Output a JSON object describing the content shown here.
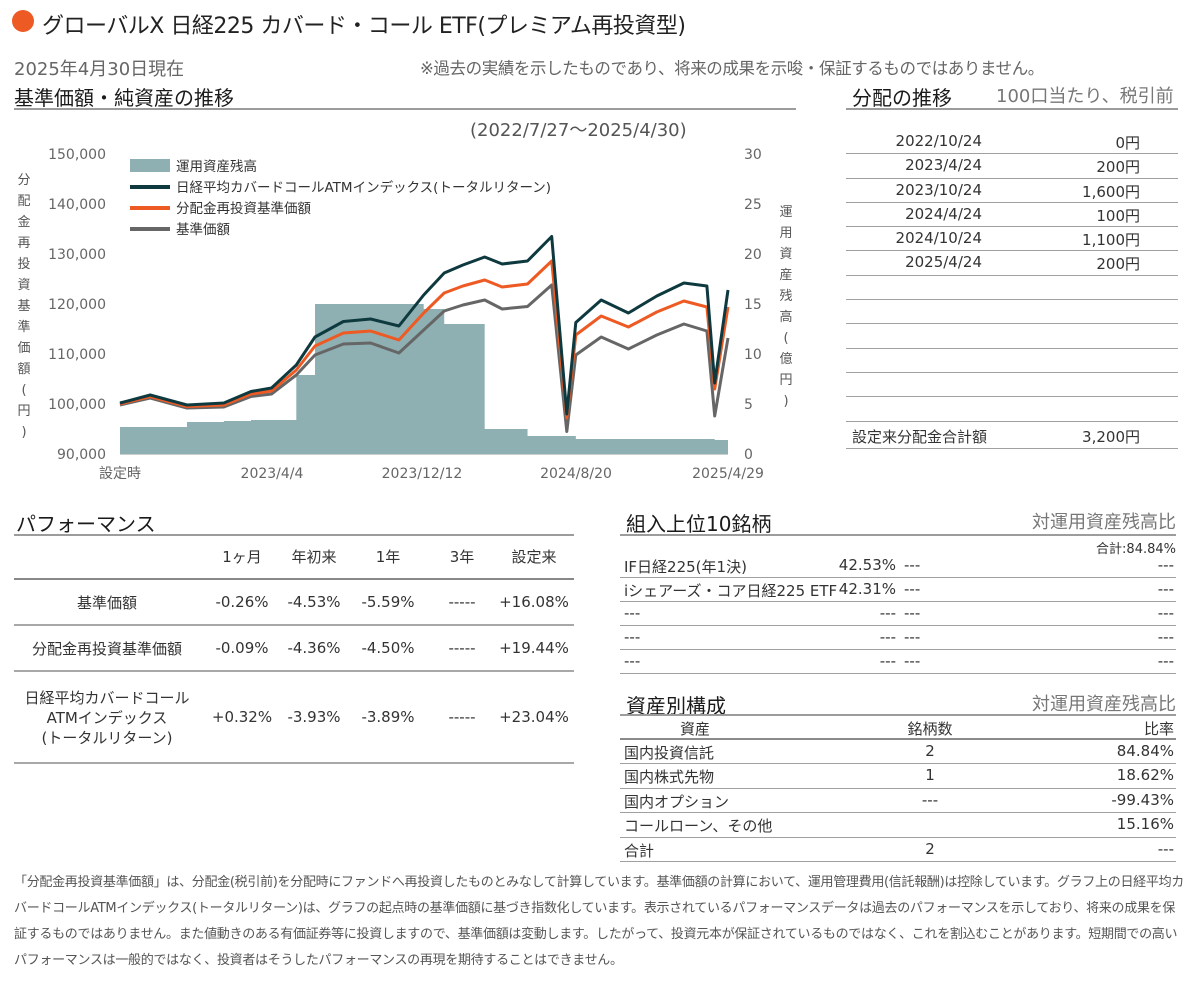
{
  "header": {
    "fund_name": "グローバルX 日経225 カバード・コール ETF(プレミアム再投資型)",
    "as_of": "2025年4月30日現在",
    "disclaimer": "※過去の実績を示したものであり、将来の成果を示唆・保証するものではありません。"
  },
  "nav_chart": {
    "section_title": "基準価額・純資産の推移",
    "period": "(2022/7/27〜2025/4/30)",
    "left_axis_label": "分配金再投資基準価額(円)",
    "right_axis_label": "運用資産残高(億円)",
    "left_ticks": [
      "150,000",
      "140,000",
      "130,000",
      "120,000",
      "110,000",
      "100,000",
      "90,000"
    ],
    "right_ticks": [
      "30",
      "25",
      "20",
      "15",
      "10",
      "5",
      "0"
    ],
    "x_ticks": [
      "設定時",
      "2023/4/4",
      "2023/12/12",
      "2024/8/20",
      "2025/4/29"
    ],
    "legend": [
      "運用資産残高",
      "日経平均カバードコールATMインデックス(トータルリターン)",
      "分配金再投資基準価額",
      "基準価額"
    ],
    "colors": {
      "aum": "#8fb0b2",
      "index": "#0e3a3f",
      "reinvest": "#ee5a24",
      "nav": "#666666"
    }
  },
  "chart_data": {
    "type": "line",
    "left_axis": {
      "min": 90000,
      "max": 150000
    },
    "right_axis": {
      "min": 0,
      "max": 30
    },
    "x": [
      "2022/7/27",
      "2022/9/15",
      "2022/11/15",
      "2023/1/15",
      "2023/3/1",
      "2023/4/4",
      "2023/5/15",
      "2023/6/15",
      "2023/8/1",
      "2023/9/15",
      "2023/11/1",
      "2023/12/12",
      "2024/1/15",
      "2024/2/15",
      "2024/3/22",
      "2024/4/20",
      "2024/6/1",
      "2024/7/11",
      "2024/8/5",
      "2024/8/20",
      "2024/10/1",
      "2024/11/15",
      "2025/1/1",
      "2025/2/15",
      "2025/3/25",
      "2025/4/7",
      "2025/4/29"
    ],
    "series": [
      {
        "name": "日経平均カバードコールATMインデックス(トータルリターン)",
        "axis": "left",
        "values": [
          100200,
          101800,
          99800,
          100200,
          102500,
          103200,
          107800,
          113400,
          116500,
          117000,
          115600,
          121800,
          126200,
          127800,
          129400,
          128000,
          128600,
          133500,
          98000,
          116300,
          120800,
          118200,
          121600,
          124200,
          123600,
          104200,
          122800
        ]
      },
      {
        "name": "分配金再投資基準価額",
        "axis": "left",
        "values": [
          100000,
          101500,
          99500,
          99800,
          102000,
          102600,
          106800,
          111600,
          114200,
          114600,
          112800,
          118200,
          122200,
          123600,
          124800,
          123400,
          124000,
          128600,
          97200,
          113800,
          117600,
          115400,
          118400,
          120600,
          119400,
          103000,
          119400
        ]
      },
      {
        "name": "基準価額",
        "axis": "left",
        "values": [
          99800,
          101200,
          99200,
          99400,
          101500,
          102000,
          105800,
          109800,
          112000,
          112200,
          110200,
          114800,
          118600,
          119800,
          120800,
          119000,
          119500,
          123800,
          94500,
          109800,
          113400,
          111000,
          113800,
          116000,
          114600,
          97600,
          113200
        ]
      },
      {
        "name": "運用資産残高",
        "axis": "right",
        "type": "area",
        "values": [
          2.7,
          2.7,
          3.2,
          3.3,
          3.4,
          3.4,
          7.9,
          15.0,
          15.0,
          15.0,
          15.0,
          14.5,
          13.0,
          13.0,
          2.5,
          2.5,
          1.8,
          1.8,
          1.8,
          1.5,
          1.5,
          1.5,
          1.5,
          1.5,
          1.5,
          1.4,
          1.6
        ]
      }
    ]
  },
  "distribution": {
    "title": "分配の推移",
    "note": "100口当たり、税引前",
    "rows": [
      {
        "date": "2022/10/24",
        "amount": "0円"
      },
      {
        "date": "2023/4/24",
        "amount": "200円"
      },
      {
        "date": "2023/10/24",
        "amount": "1,600円"
      },
      {
        "date": "2024/4/24",
        "amount": "100円"
      },
      {
        "date": "2024/10/24",
        "amount": "1,100円"
      },
      {
        "date": "2025/4/24",
        "amount": "200円"
      }
    ],
    "total_label": "設定来分配金合計額",
    "total_value": "3,200円"
  },
  "performance": {
    "title": "パフォーマンス",
    "headers": [
      "1ヶ月",
      "年初来",
      "1年",
      "3年",
      "設定来"
    ],
    "rows": [
      {
        "label": [
          "基準価額"
        ],
        "values": [
          "-0.26%",
          "-4.53%",
          "-5.59%",
          "-----",
          "+16.08%"
        ]
      },
      {
        "label": [
          "分配金再投資基準価額"
        ],
        "values": [
          "-0.09%",
          "-4.36%",
          "-4.50%",
          "-----",
          "+19.44%"
        ]
      },
      {
        "label": [
          "日経平均カバードコール",
          "ATMインデックス",
          "(トータルリターン)"
        ],
        "values": [
          "+0.32%",
          "-3.93%",
          "-3.89%",
          "-----",
          "+23.04%"
        ]
      }
    ]
  },
  "top10": {
    "title": "組入上位10銘柄",
    "note": "対運用資産残高比",
    "total": "合計:84.84%",
    "rows": [
      {
        "name": "IF日経225(年1決)",
        "pct": "42.53%",
        "name2": "---",
        "pct2": "---"
      },
      {
        "name": "iシェアーズ・コア日経225 ETF",
        "pct": "42.31%",
        "name2": "---",
        "pct2": "---"
      },
      {
        "name": "---",
        "pct": "---",
        "name2": "---",
        "pct2": "---"
      },
      {
        "name": "---",
        "pct": "---",
        "name2": "---",
        "pct2": "---"
      },
      {
        "name": "---",
        "pct": "---",
        "name2": "---",
        "pct2": "---"
      }
    ]
  },
  "assets": {
    "title": "資産別構成",
    "note": "対運用資産残高比",
    "headers": [
      "資産",
      "銘柄数",
      "比率"
    ],
    "rows": [
      {
        "name": "国内投資信託",
        "count": "2",
        "ratio": "84.84%"
      },
      {
        "name": "国内株式先物",
        "count": "1",
        "ratio": "18.62%"
      },
      {
        "name": "国内オプション",
        "count": "---",
        "ratio": "-99.43%"
      },
      {
        "name": "コールローン、その他",
        "count": "",
        "ratio": "15.16%"
      },
      {
        "name": "合計",
        "count": "2",
        "ratio": "---"
      }
    ]
  },
  "footnote": "「分配金再投資基準価額」は、分配金(税引前)を分配時にファンドへ再投資したものとみなして計算しています。基準価額の計算において、運用管理費用(信託報酬)は控除しています。グラフ上の日経平均カバードコールATMインデックス(トータルリターン)は、グラフの起点時の基準価額に基づき指数化しています。表示されているパフォーマンスデータは過去のパフォーマンスを示しており、将来の成果を保証するものではありません。また値動きのある有価証券等に投資しますので、基準価額は変動します。したがって、投資元本が保証されているものではなく、これを割込むことがあります。短期間での高いパフォーマンスは一般的ではなく、投資者はそうしたパフォーマンスの再現を期待することはできません。"
}
